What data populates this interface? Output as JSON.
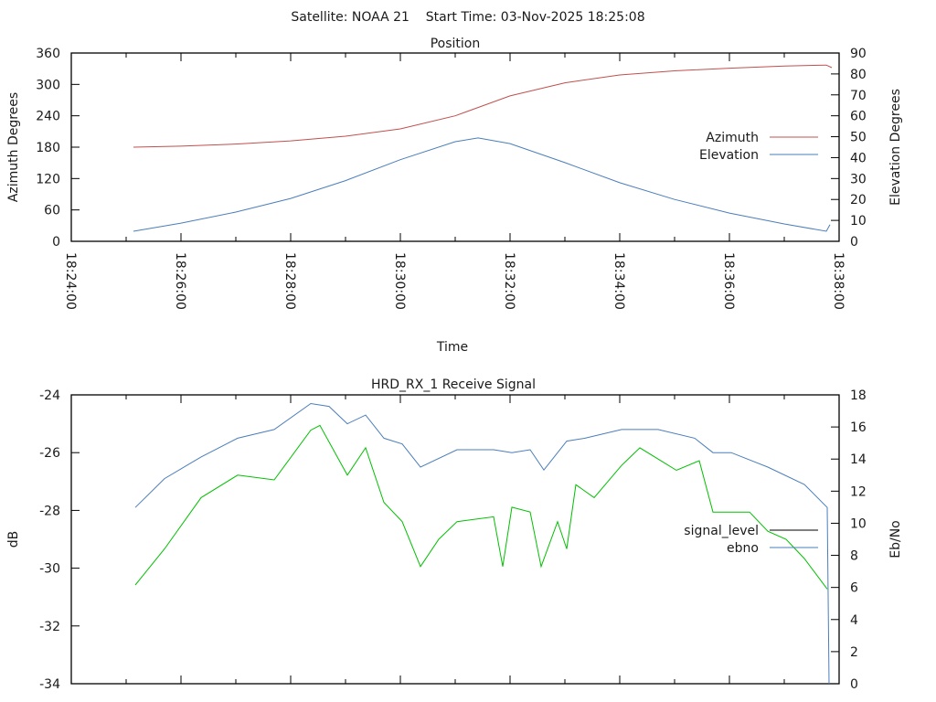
{
  "title": "Satellite: NOAA 21    Start Time: 03-Nov-2025 18:25:08",
  "chart_data": [
    {
      "type": "line",
      "title": "Position",
      "xlabel": "Time",
      "ylabel": "Azimuth Degrees",
      "y2label": "Elevation Degrees",
      "xlim": [
        "18:24:00",
        "18:38:00"
      ],
      "ylim": [
        0,
        360
      ],
      "y2lim": [
        0,
        90
      ],
      "xticks": [
        "18:24:00",
        "18:26:00",
        "18:28:00",
        "18:30:00",
        "18:32:00",
        "18:34:00",
        "18:36:00",
        "18:38:00"
      ],
      "yticks": [
        "0",
        "60",
        "120",
        "180",
        "240",
        "300",
        "360"
      ],
      "y2ticks": [
        "0",
        "10",
        "20",
        "30",
        "40",
        "50",
        "60",
        "70",
        "80",
        "90"
      ],
      "legend_position": "right",
      "series": [
        {
          "name": "Azimuth",
          "axis": "y",
          "color": "#c0504d",
          "x": [
            "18:25:08",
            "18:26:00",
            "18:27:00",
            "18:28:00",
            "18:29:00",
            "18:30:00",
            "18:31:00",
            "18:32:00",
            "18:33:00",
            "18:34:00",
            "18:35:00",
            "18:36:00",
            "18:37:00",
            "18:37:46",
            "18:37:52"
          ],
          "y": [
            180,
            182,
            186,
            192,
            201,
            215,
            240,
            278,
            303,
            318,
            326,
            331,
            335,
            337,
            332
          ]
        },
        {
          "name": "Elevation",
          "axis": "y2",
          "color": "#4a7ebb",
          "x": [
            "18:25:08",
            "18:26:00",
            "18:27:00",
            "18:28:00",
            "18:29:00",
            "18:30:00",
            "18:31:00",
            "18:31:25",
            "18:32:00",
            "18:33:00",
            "18:34:00",
            "18:35:00",
            "18:36:00",
            "18:37:00",
            "18:37:46",
            "18:37:50"
          ],
          "y": [
            4.8,
            8.7,
            14,
            20.5,
            29,
            39,
            47.6,
            49.4,
            46.7,
            37.6,
            28,
            20,
            13.5,
            8.3,
            4.8,
            8
          ]
        }
      ]
    },
    {
      "type": "line",
      "title": "HRD_RX_1 Receive Signal",
      "ylabel": "dB",
      "y2label": "Eb/No",
      "xlim": [
        "18:24:00",
        "18:38:00"
      ],
      "ylim": [
        -34,
        -24
      ],
      "y2lim": [
        0,
        18
      ],
      "yticks": [
        "-34",
        "-32",
        "-30",
        "-28",
        "-26",
        "-24"
      ],
      "y2ticks": [
        "0",
        "2",
        "4",
        "6",
        "8",
        "10",
        "12",
        "14",
        "16",
        "18"
      ],
      "legend_position": "right",
      "legend": [
        {
          "name": "signal_level",
          "color": "#000000"
        },
        {
          "name": "ebno",
          "color": "#4a7ebb"
        }
      ],
      "series": [
        {
          "name": "signal_level",
          "axis": "y",
          "color": "#4a7ebb",
          "x": [
            "18:25:10",
            "18:25:42",
            "18:26:22",
            "18:27:02",
            "18:27:42",
            "18:28:22",
            "18:28:42",
            "18:29:02",
            "18:29:22",
            "18:29:42",
            "18:30:02",
            "18:30:22",
            "18:31:02",
            "18:31:42",
            "18:32:02",
            "18:32:22",
            "18:32:37",
            "18:33:02",
            "18:33:22",
            "18:34:02",
            "18:34:42",
            "18:35:22",
            "18:35:42",
            "18:36:02",
            "18:36:42",
            "18:37:22",
            "18:37:47",
            "18:37:49"
          ],
          "y": [
            -27.9,
            -26.9,
            -26.15,
            -25.5,
            -25.2,
            -24.3,
            -24.4,
            -25.0,
            -24.7,
            -25.5,
            -25.7,
            -26.5,
            -25.9,
            -25.9,
            -26.0,
            -25.9,
            -26.6,
            -25.6,
            -25.5,
            -25.2,
            -25.2,
            -25.5,
            -26.0,
            -26.0,
            -26.5,
            -27.1,
            -27.9,
            -34
          ]
        },
        {
          "name": "ebno",
          "axis": "y2",
          "color": "#00c000",
          "x": [
            "18:25:10",
            "18:25:42",
            "18:26:22",
            "18:27:02",
            "18:27:42",
            "18:28:22",
            "18:28:32",
            "18:29:02",
            "18:29:22",
            "18:29:42",
            "18:30:02",
            "18:30:22",
            "18:30:42",
            "18:31:02",
            "18:31:42",
            "18:31:52",
            "18:32:02",
            "18:32:22",
            "18:32:34",
            "18:32:52",
            "18:33:02",
            "18:33:12",
            "18:33:32",
            "18:34:02",
            "18:34:22",
            "18:35:02",
            "18:35:27",
            "18:35:42",
            "18:36:22",
            "18:36:42",
            "18:37:02",
            "18:37:22",
            "18:37:47"
          ],
          "y": [
            6.15,
            8.4,
            11.6,
            13.0,
            12.7,
            15.8,
            16.1,
            13.0,
            14.7,
            11.3,
            10.1,
            7.3,
            9.0,
            10.1,
            10.4,
            7.3,
            11.0,
            10.7,
            7.3,
            10.1,
            8.4,
            12.4,
            11.6,
            13.6,
            14.7,
            13.3,
            13.9,
            10.7,
            10.7,
            9.5,
            9.0,
            7.8,
            5.9
          ]
        }
      ]
    }
  ]
}
